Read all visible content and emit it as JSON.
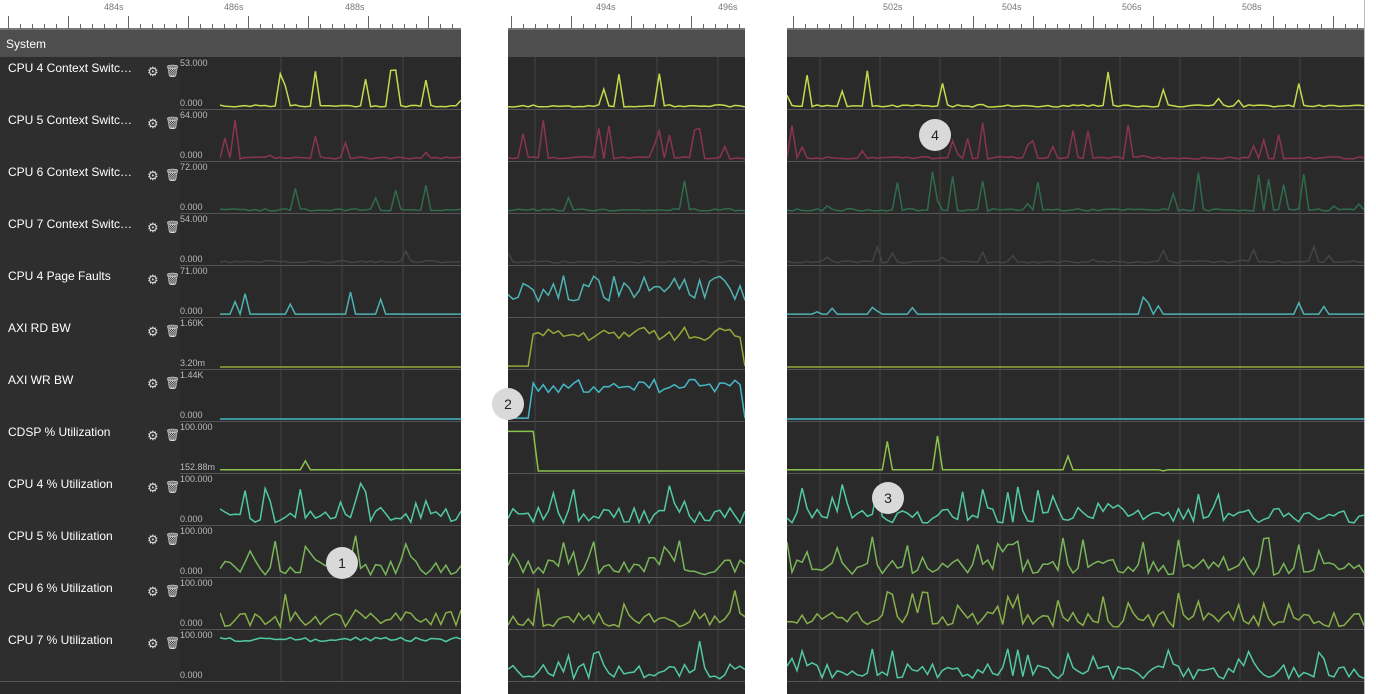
{
  "section_header": "System",
  "colors": {
    "yellow": "#c8d84a",
    "magenta": "#8a3354",
    "darkgreen": "#2f6b4d",
    "gray": "#444444",
    "teal": "#4fb2b2",
    "olive": "#96a838",
    "cyan": "#45b8c8",
    "lime": "#8bc34a",
    "mint": "#52c9a4",
    "leaf": "#7ab55a",
    "grass": "#88b04a"
  },
  "tracks": [
    {
      "label": "CPU 4 Context Switc…",
      "max": "53.000",
      "min": "0.000",
      "color_key": "yellow"
    },
    {
      "label": "CPU 5 Context Switc…",
      "max": "64.000",
      "min": "0.000",
      "color_key": "magenta"
    },
    {
      "label": "CPU 6 Context Switc…",
      "max": "72.000",
      "min": "0.000",
      "color_key": "darkgreen"
    },
    {
      "label": "CPU 7 Context Switc…",
      "max": "54.000",
      "min": "0.000",
      "color_key": "gray"
    },
    {
      "label": "CPU 4 Page Faults",
      "max": "71.000",
      "min": "0.000",
      "color_key": "teal"
    },
    {
      "label": "AXI RD BW",
      "max": "1.60K",
      "min": "3.20m",
      "color_key": "olive"
    },
    {
      "label": "AXI WR BW",
      "max": "1.44K",
      "min": "0.000",
      "color_key": "cyan"
    },
    {
      "label": "CDSP % Utilization",
      "max": "100.000",
      "min": "152.88m",
      "color_key": "lime"
    },
    {
      "label": "CPU 4 % Utilization",
      "max": "100.000",
      "min": "0.000",
      "color_key": "mint"
    },
    {
      "label": "CPU 5 % Utilization",
      "max": "100.000",
      "min": "0.000",
      "color_key": "leaf"
    },
    {
      "label": "CPU 6 % Utilization",
      "max": "100.000",
      "min": "0.000",
      "color_key": "grass"
    },
    {
      "label": "CPU 7 % Utilization",
      "max": "100.000",
      "min": "0.000",
      "color_key": "mint"
    }
  ],
  "panels": [
    {
      "name": "panel-1",
      "time_labels": [
        "484s",
        "486s",
        "488s"
      ]
    },
    {
      "name": "panel-2",
      "time_labels": [
        "494s",
        "496s"
      ]
    },
    {
      "name": "panel-3",
      "time_labels": [
        "502s",
        "504s",
        "506s",
        "508s"
      ]
    }
  ],
  "badges": [
    "1",
    "2",
    "3",
    "4"
  ],
  "icons": {
    "settings": "gear-icon",
    "delete": "trash-icon"
  }
}
